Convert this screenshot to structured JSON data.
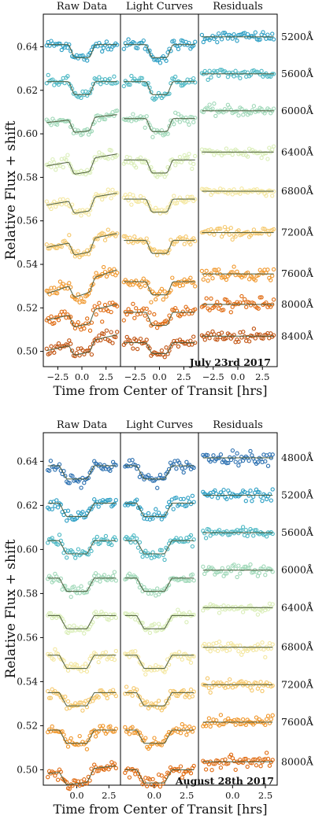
{
  "chart_data": [
    {
      "type": "scatter",
      "panel_titles": [
        "Raw Data",
        "Light Curves",
        "Residuals"
      ],
      "ylabel": "Relative Flux + shift",
      "xlabel": "Time from Center of Transit [hrs]",
      "date_label": "July 23rd 2017",
      "xlim": [
        -4,
        4
      ],
      "ylim": [
        0.493,
        0.655
      ],
      "x_ticks": [
        -2.5,
        0.0,
        2.5
      ],
      "x_tick_labels": [
        "−2.5",
        "0.0",
        "2.5"
      ],
      "y_ticks": [
        0.5,
        0.52,
        0.54,
        0.56,
        0.58,
        0.6,
        0.62,
        0.64
      ],
      "y_tick_labels": [
        "0.50",
        "0.52",
        "0.54",
        "0.56",
        "0.58",
        "0.60",
        "0.62",
        "0.64"
      ],
      "series": [
        {
          "name": "5200Å",
          "color": "#2b9ec4",
          "baseline": 0.641,
          "depth": 0.006,
          "trend": 0.0,
          "noise": 0.0012
        },
        {
          "name": "5600Å",
          "color": "#4cb8c4",
          "baseline": 0.624,
          "depth": 0.006,
          "trend": 0.0,
          "noise": 0.0012
        },
        {
          "name": "6000Å",
          "color": "#9fd8b8",
          "baseline": 0.607,
          "depth": 0.006,
          "trend": 0.004,
          "noise": 0.0012
        },
        {
          "name": "6400Å",
          "color": "#daeeb8",
          "baseline": 0.588,
          "depth": 0.006,
          "trend": 0.006,
          "noise": 0.0012
        },
        {
          "name": "6800Å",
          "color": "#f4e7a0",
          "baseline": 0.57,
          "depth": 0.006,
          "trend": 0.006,
          "noise": 0.001
        },
        {
          "name": "7200Å",
          "color": "#f5c76a",
          "baseline": 0.551,
          "depth": 0.006,
          "trend": 0.007,
          "noise": 0.0012
        },
        {
          "name": "7600Å",
          "color": "#f0962a",
          "baseline": 0.532,
          "depth": 0.006,
          "trend": 0.012,
          "noise": 0.0014
        },
        {
          "name": "8000Å",
          "color": "#e06a10",
          "baseline": 0.518,
          "depth": 0.006,
          "trend": 0.008,
          "noise": 0.0016
        },
        {
          "name": "8400Å",
          "color": "#c0500c",
          "baseline": 0.504,
          "depth": 0.005,
          "trend": 0.008,
          "noise": 0.0016
        }
      ]
    },
    {
      "type": "scatter",
      "panel_titles": [
        "Raw Data",
        "Light Curves",
        "Residuals"
      ],
      "ylabel": "Relative Flux + shift",
      "xlabel": "Time from Center of Transit [hrs]",
      "date_label": "August 28th 2017",
      "xlim": [
        -2.6,
        3.4
      ],
      "ylim": [
        0.493,
        0.653
      ],
      "x_ticks": [
        0.0,
        2.5
      ],
      "x_tick_labels": [
        "0.0",
        "2.5"
      ],
      "y_ticks": [
        0.5,
        0.52,
        0.54,
        0.56,
        0.58,
        0.6,
        0.62,
        0.64
      ],
      "y_tick_labels": [
        "0.50",
        "0.52",
        "0.54",
        "0.56",
        "0.58",
        "0.60",
        "0.62",
        "0.64"
      ],
      "series": [
        {
          "name": "4800Å",
          "color": "#2a6fb0",
          "baseline": 0.638,
          "depth": 0.006,
          "trend": 0.0,
          "noise": 0.0014
        },
        {
          "name": "5200Å",
          "color": "#2b9ec4",
          "baseline": 0.621,
          "depth": 0.006,
          "trend": 0.0,
          "noise": 0.0014
        },
        {
          "name": "5600Å",
          "color": "#4cb8c4",
          "baseline": 0.604,
          "depth": 0.006,
          "trend": 0.0,
          "noise": 0.0012
        },
        {
          "name": "6000Å",
          "color": "#9fd8b8",
          "baseline": 0.587,
          "depth": 0.006,
          "trend": 0.0,
          "noise": 0.0012
        },
        {
          "name": "6400Å",
          "color": "#daeeb8",
          "baseline": 0.57,
          "depth": 0.006,
          "trend": 0.0,
          "noise": 0.001
        },
        {
          "name": "6800Å",
          "color": "#f4e7a0",
          "baseline": 0.552,
          "depth": 0.006,
          "trend": 0.0,
          "noise": 0.0012
        },
        {
          "name": "7200Å",
          "color": "#f5c76a",
          "baseline": 0.535,
          "depth": 0.006,
          "trend": 0.0,
          "noise": 0.0012
        },
        {
          "name": "7600Å",
          "color": "#f0962a",
          "baseline": 0.518,
          "depth": 0.006,
          "trend": 0.0,
          "noise": 0.0012
        },
        {
          "name": "8000Å",
          "color": "#e06a10",
          "baseline": 0.5,
          "depth": 0.006,
          "trend": 0.004,
          "noise": 0.0014
        }
      ]
    }
  ]
}
